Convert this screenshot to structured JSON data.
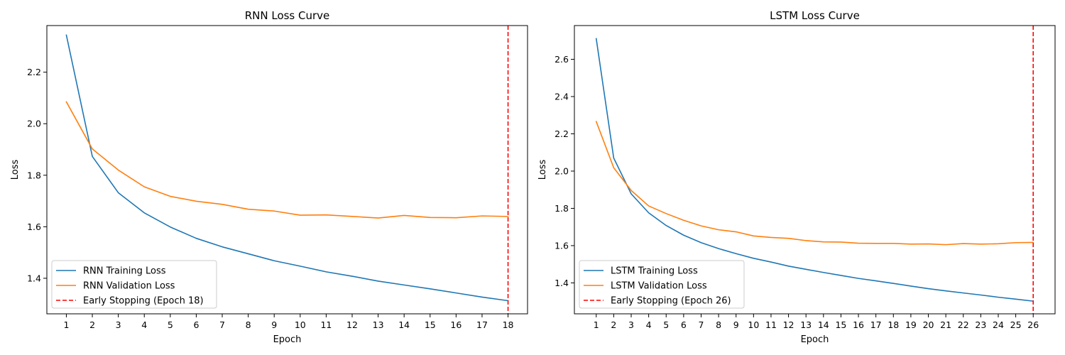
{
  "figure": {
    "background": "#ffffff"
  },
  "chart_data": [
    {
      "type": "line",
      "title": "RNN Loss Curve",
      "xlabel": "Epoch",
      "ylabel": "Loss",
      "x": [
        1,
        2,
        3,
        4,
        5,
        6,
        7,
        8,
        9,
        10,
        11,
        12,
        13,
        14,
        15,
        16,
        17,
        18
      ],
      "xlim": [
        0.25,
        18.75
      ],
      "ylim": [
        1.262,
        2.381
      ],
      "yticks": [
        1.4,
        1.6,
        1.8,
        2.0,
        2.2
      ],
      "ytick_labels": [
        "1.4",
        "1.6",
        "1.8",
        "2.0",
        "2.2"
      ],
      "series": [
        {
          "name": "RNN Training Loss",
          "color": "#1f77b4",
          "style": "solid",
          "values": [
            2.344,
            1.873,
            1.732,
            1.654,
            1.599,
            1.555,
            1.522,
            1.495,
            1.468,
            1.447,
            1.425,
            1.408,
            1.389,
            1.374,
            1.359,
            1.343,
            1.327,
            1.313
          ]
        },
        {
          "name": "RNN Validation Loss",
          "color": "#ff7f0e",
          "style": "solid",
          "values": [
            2.085,
            1.902,
            1.82,
            1.755,
            1.718,
            1.699,
            1.687,
            1.668,
            1.661,
            1.645,
            1.646,
            1.64,
            1.634,
            1.644,
            1.636,
            1.635,
            1.642,
            1.64
          ]
        }
      ],
      "vline": {
        "x": 18,
        "name": "Early Stopping (Epoch 18)",
        "color": "#ff0000",
        "style": "dashed"
      },
      "legend": "lower-left",
      "grid": false
    },
    {
      "type": "line",
      "title": "LSTM Loss Curve",
      "xlabel": "Epoch",
      "ylabel": "Loss",
      "x": [
        1,
        2,
        3,
        4,
        5,
        6,
        7,
        8,
        9,
        10,
        11,
        12,
        13,
        14,
        15,
        16,
        17,
        18,
        19,
        20,
        21,
        22,
        23,
        24,
        25,
        26
      ],
      "xlim": [
        -0.25,
        27.25
      ],
      "ylim": [
        1.234,
        2.781
      ],
      "yticks": [
        1.4,
        1.6,
        1.8,
        2.0,
        2.2,
        2.4,
        2.6
      ],
      "ytick_labels": [
        "1.4",
        "1.6",
        "1.8",
        "2.0",
        "2.2",
        "2.4",
        "2.6"
      ],
      "series": [
        {
          "name": "LSTM Training Loss",
          "color": "#1f77b4",
          "style": "solid",
          "values": [
            2.711,
            2.07,
            1.878,
            1.776,
            1.708,
            1.656,
            1.616,
            1.584,
            1.557,
            1.532,
            1.512,
            1.49,
            1.473,
            1.456,
            1.44,
            1.424,
            1.411,
            1.397,
            1.383,
            1.369,
            1.357,
            1.346,
            1.335,
            1.323,
            1.313,
            1.302
          ]
        },
        {
          "name": "LSTM Validation Loss",
          "color": "#ff7f0e",
          "style": "solid",
          "values": [
            2.266,
            2.018,
            1.896,
            1.813,
            1.772,
            1.736,
            1.706,
            1.685,
            1.674,
            1.652,
            1.644,
            1.639,
            1.627,
            1.62,
            1.619,
            1.613,
            1.612,
            1.612,
            1.608,
            1.609,
            1.605,
            1.611,
            1.608,
            1.61,
            1.616,
            1.617
          ]
        }
      ],
      "vline": {
        "x": 26,
        "name": "Early Stopping (Epoch 26)",
        "color": "#ff0000",
        "style": "dashed"
      },
      "legend": "lower-left",
      "grid": false
    }
  ]
}
